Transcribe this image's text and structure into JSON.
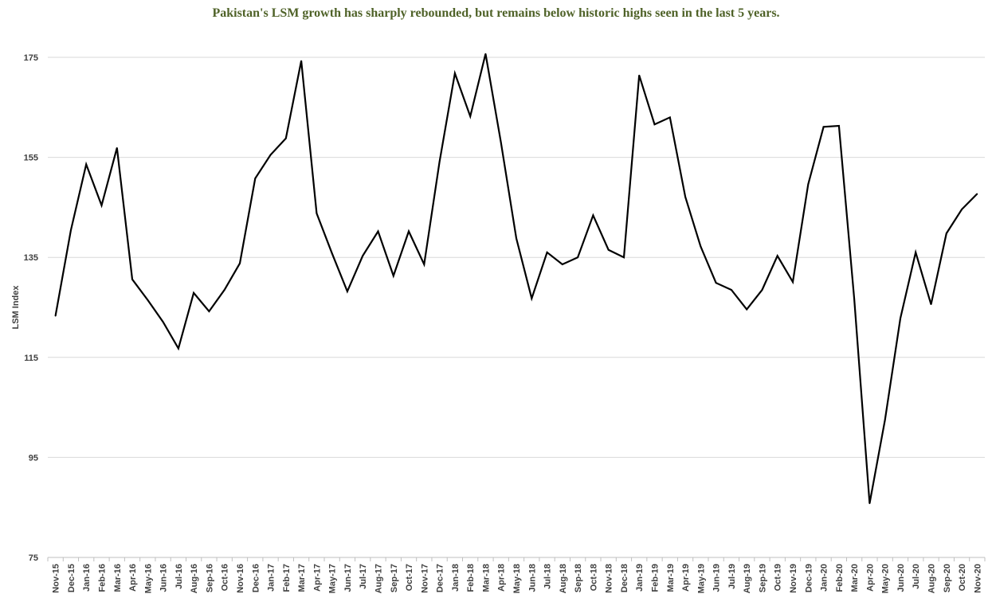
{
  "chart_data": {
    "type": "line",
    "title": "Pakistan's LSM growth has sharply rebounded, but remains below historic highs seen in the last 5 years.",
    "xlabel": "",
    "ylabel": "LSM Index",
    "ylim": [
      75,
      175
    ],
    "yticks": [
      75,
      95,
      115,
      135,
      155,
      175
    ],
    "grid": "horizontal",
    "legend": "none",
    "line_color": "#000000",
    "title_color": "#4f6228",
    "categories": [
      "Nov-15",
      "Dec-15",
      "Jan-16",
      "Feb-16",
      "Mar-16",
      "Apr-16",
      "May-16",
      "Jun-16",
      "Jul-16",
      "Aug-16",
      "Sep-16",
      "Oct-16",
      "Nov-16",
      "Dec-16",
      "Jan-17",
      "Feb-17",
      "Mar-17",
      "Apr-17",
      "May-17",
      "Jun-17",
      "Jul-17",
      "Aug-17",
      "Sep-17",
      "Oct-17",
      "Nov-17",
      "Dec-17",
      "Jan-18",
      "Feb-18",
      "Mar-18",
      "Apr-18",
      "May-18",
      "Jun-18",
      "Jul-18",
      "Aug-18",
      "Sep-18",
      "Oct-18",
      "Nov-18",
      "Dec-18",
      "Jan-19",
      "Feb-19",
      "Mar-19",
      "Apr-19",
      "May-19",
      "Jun-19",
      "Jul-19",
      "Aug-19",
      "Sep-19",
      "Oct-19",
      "Nov-19",
      "Dec-19",
      "Jan-20",
      "Feb-20",
      "Mar-20",
      "Apr-20",
      "May-20",
      "Jun-20",
      "Jul-20",
      "Aug-20",
      "Sep-20",
      "Oct-20",
      "Nov-20"
    ],
    "series": [
      {
        "values": [
          123.3,
          140.4,
          153.6,
          145.4,
          156.9,
          130.6,
          126.5,
          122.1,
          116.8,
          127.9,
          124.2,
          128.5,
          133.8,
          150.8,
          155.5,
          158.8,
          174.3,
          143.8,
          135.8,
          128.2,
          135.3,
          140.2,
          131.3,
          140.2,
          133.6,
          154.1,
          171.8,
          163.2,
          175.7,
          158.0,
          138.8,
          126.8,
          136.0,
          133.6,
          135.0,
          143.4,
          136.5,
          135.0,
          171.4,
          161.6,
          163.0,
          147.1,
          137.2,
          129.9,
          128.5,
          124.6,
          128.5,
          135.3,
          130.1,
          149.6,
          161.1,
          161.3,
          126.7,
          85.8,
          102.5,
          122.8,
          136.0,
          125.6,
          139.8,
          144.6,
          147.7
        ]
      }
    ]
  }
}
